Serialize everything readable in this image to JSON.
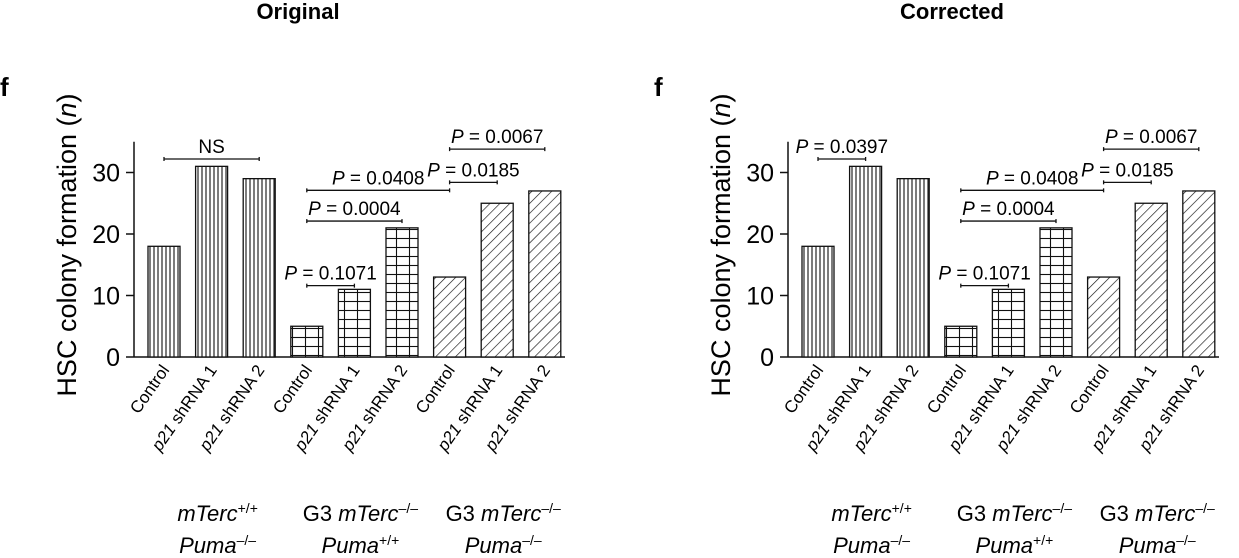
{
  "chart_data": [
    {
      "type": "bar",
      "title": "Original",
      "panel_letter": "f",
      "ylabel_parts": [
        "HSC colony formation (",
        "n",
        ")"
      ],
      "ylim": [
        0,
        35
      ],
      "yticks": [
        "0",
        "10",
        "20",
        "30"
      ],
      "categories": [
        {
          "prefix": "",
          "rest": "Control"
        },
        {
          "prefix": "p21",
          "rest": " shRNA 1"
        },
        {
          "prefix": "p21",
          "rest": " shRNA 2"
        },
        {
          "prefix": "",
          "rest": "Control"
        },
        {
          "prefix": "p21",
          "rest": " shRNA 1"
        },
        {
          "prefix": "p21",
          "rest": " shRNA 2"
        },
        {
          "prefix": "",
          "rest": "Control"
        },
        {
          "prefix": "p21",
          "rest": " shRNA 1"
        },
        {
          "prefix": "p21",
          "rest": " shRNA 2"
        }
      ],
      "values": [
        18,
        31,
        29,
        5,
        11,
        21,
        13,
        25,
        27
      ],
      "patterns": [
        "vertical",
        "vertical",
        "vertical",
        "grid",
        "grid",
        "grid",
        "diagonal",
        "diagonal",
        "diagonal"
      ],
      "groups": [
        {
          "line1": [
            {
              "t": "mTerc",
              "i": true
            },
            {
              "t": "+/+",
              "sup": true
            }
          ],
          "line2": [
            {
              "t": "Puma",
              "i": true
            },
            {
              "t": "–/–",
              "sup": true
            }
          ]
        },
        {
          "line1": [
            {
              "t": "G3 "
            },
            {
              "t": "mTerc",
              "i": true
            },
            {
              "t": "–/–",
              "sup": true
            }
          ],
          "line2": [
            {
              "t": "Puma",
              "i": true
            },
            {
              "t": "+/+",
              "sup": true
            }
          ]
        },
        {
          "line1": [
            {
              "t": "G3 "
            },
            {
              "t": "mTerc",
              "i": true
            },
            {
              "t": "–/–",
              "sup": true
            }
          ],
          "line2": [
            {
              "t": "Puma",
              "i": true
            },
            {
              "t": "–/–",
              "sup": true
            }
          ]
        }
      ],
      "comparisons": [
        {
          "from": 0,
          "to": 2,
          "y": 32.2,
          "p": "",
          "label": "NS"
        },
        {
          "from": 3,
          "to": 6,
          "y": 27.1,
          "p": "P",
          "label": " = 0.0408"
        },
        {
          "from": 3,
          "to": 5,
          "y": 22.1,
          "p": "P",
          "label": " = 0.0004"
        },
        {
          "from": 3,
          "to": 4,
          "y": 11.6,
          "p": "P",
          "label": " = 0.1071"
        },
        {
          "from": 6,
          "to": 7,
          "y": 28.4,
          "p": "P",
          "label": " = 0.0185"
        },
        {
          "from": 6,
          "to": 8,
          "y": 33.8,
          "p": "P",
          "label": " = 0.0067"
        }
      ]
    },
    {
      "type": "bar",
      "title": "Corrected",
      "panel_letter": "f",
      "ylabel_parts": [
        "HSC colony formation (",
        "n",
        ")"
      ],
      "ylim": [
        0,
        35
      ],
      "yticks": [
        "0",
        "10",
        "20",
        "30"
      ],
      "categories": [
        {
          "prefix": "",
          "rest": "Control"
        },
        {
          "prefix": "p21",
          "rest": " shRNA 1"
        },
        {
          "prefix": "p21",
          "rest": " shRNA 2"
        },
        {
          "prefix": "",
          "rest": "Control"
        },
        {
          "prefix": "p21",
          "rest": " shRNA 1"
        },
        {
          "prefix": "p21",
          "rest": " shRNA 2"
        },
        {
          "prefix": "",
          "rest": "Control"
        },
        {
          "prefix": "p21",
          "rest": " shRNA 1"
        },
        {
          "prefix": "p21",
          "rest": " shRNA 2"
        }
      ],
      "values": [
        18,
        31,
        29,
        5,
        11,
        21,
        13,
        25,
        27
      ],
      "patterns": [
        "vertical",
        "vertical",
        "vertical",
        "grid",
        "grid",
        "grid",
        "diagonal",
        "diagonal",
        "diagonal"
      ],
      "groups": [
        {
          "line1": [
            {
              "t": "mTerc",
              "i": true
            },
            {
              "t": "+/+",
              "sup": true
            }
          ],
          "line2": [
            {
              "t": "Puma",
              "i": true
            },
            {
              "t": "–/–",
              "sup": true
            }
          ]
        },
        {
          "line1": [
            {
              "t": "G3 "
            },
            {
              "t": "mTerc",
              "i": true
            },
            {
              "t": "–/–",
              "sup": true
            }
          ],
          "line2": [
            {
              "t": "Puma",
              "i": true
            },
            {
              "t": "+/+",
              "sup": true
            }
          ]
        },
        {
          "line1": [
            {
              "t": "G3 "
            },
            {
              "t": "mTerc",
              "i": true
            },
            {
              "t": "–/–",
              "sup": true
            }
          ],
          "line2": [
            {
              "t": "Puma",
              "i": true
            },
            {
              "t": "–/–",
              "sup": true
            }
          ]
        }
      ],
      "comparisons": [
        {
          "from": 0,
          "to": 1,
          "y": 32.2,
          "p": "P",
          "label": " = 0.0397"
        },
        {
          "from": 3,
          "to": 6,
          "y": 27.1,
          "p": "P",
          "label": " = 0.0408"
        },
        {
          "from": 3,
          "to": 5,
          "y": 22.1,
          "p": "P",
          "label": " = 0.0004"
        },
        {
          "from": 3,
          "to": 4,
          "y": 11.6,
          "p": "P",
          "label": " = 0.1071"
        },
        {
          "from": 6,
          "to": 7,
          "y": 28.4,
          "p": "P",
          "label": " = 0.0185"
        },
        {
          "from": 6,
          "to": 8,
          "y": 33.8,
          "p": "P",
          "label": " = 0.0067"
        }
      ]
    }
  ]
}
